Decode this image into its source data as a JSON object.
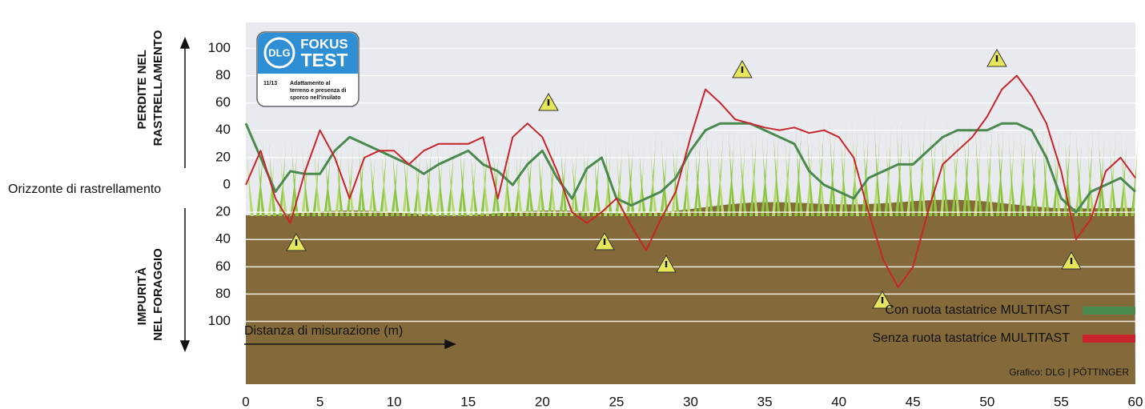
{
  "chart_data": {
    "type": "line",
    "y_label_top": [
      "PERDITE NEL",
      "RASTRELLAMENTO"
    ],
    "y_label_bottom": [
      "IMPURITÀ",
      "NEL FORAGGIO"
    ],
    "zero_label": "Orizzonte di rastrellamento",
    "x_label": "Distanza di misurazione (m)",
    "credit": "Grafico: DLG | PÖTTINGER",
    "badge": {
      "logo": "DLG",
      "line1": "FOKUS",
      "line2": "TEST",
      "code": "11/13",
      "text": [
        "Adattamento al",
        "terreno e presenza di",
        "sporco nell'insilato"
      ]
    },
    "x": [
      0,
      1,
      2,
      3,
      4,
      5,
      6,
      7,
      8,
      9,
      10,
      11,
      12,
      13,
      14,
      15,
      16,
      17,
      18,
      19,
      20,
      21,
      22,
      23,
      24,
      25,
      26,
      27,
      28,
      29,
      30,
      31,
      32,
      33,
      34,
      35,
      36,
      37,
      38,
      39,
      40,
      41,
      42,
      43,
      44,
      45,
      46,
      47,
      48,
      49,
      50,
      51,
      52,
      53,
      54,
      55,
      56,
      57,
      58,
      59,
      60
    ],
    "series": [
      {
        "name": "Con ruota tastatrice MULTITAST",
        "color": "#4a8a4f",
        "values": [
          45,
          20,
          -5,
          10,
          8,
          8,
          25,
          35,
          30,
          25,
          20,
          15,
          8,
          15,
          20,
          25,
          15,
          10,
          0,
          15,
          25,
          5,
          -10,
          12,
          20,
          -10,
          -15,
          -10,
          -5,
          5,
          25,
          40,
          45,
          45,
          45,
          40,
          35,
          30,
          10,
          0,
          -5,
          -10,
          5,
          10,
          15,
          15,
          25,
          35,
          40,
          40,
          40,
          45,
          45,
          40,
          20,
          -10,
          -20,
          -5,
          0,
          5,
          -5
        ]
      },
      {
        "name": "Senza ruota tastatrice MULTITAST",
        "color": "#c8242b",
        "values": [
          0,
          25,
          -10,
          -28,
          10,
          40,
          20,
          -10,
          20,
          25,
          25,
          15,
          25,
          30,
          30,
          30,
          35,
          -10,
          35,
          45,
          35,
          10,
          -20,
          -28,
          -20,
          -10,
          -30,
          -48,
          -25,
          -5,
          35,
          70,
          60,
          48,
          45,
          42,
          40,
          42,
          38,
          40,
          35,
          20,
          -20,
          -55,
          -75,
          -60,
          -20,
          15,
          25,
          35,
          50,
          70,
          80,
          65,
          45,
          10,
          -40,
          -25,
          10,
          20,
          5
        ]
      }
    ],
    "xlim": [
      0,
      60
    ],
    "xticks": [
      0,
      5,
      10,
      15,
      20,
      25,
      30,
      35,
      40,
      45,
      50,
      55,
      60
    ],
    "ylim": [
      -146,
      119
    ],
    "yticks": [
      {
        "value": -100,
        "label": "100"
      },
      {
        "value": -80,
        "label": "80"
      },
      {
        "value": -60,
        "label": "60"
      },
      {
        "value": -40,
        "label": "40"
      },
      {
        "value": -20,
        "label": "20"
      },
      0,
      20,
      40,
      60,
      80,
      100
    ],
    "legend": "bottom-right",
    "grid": true
  }
}
